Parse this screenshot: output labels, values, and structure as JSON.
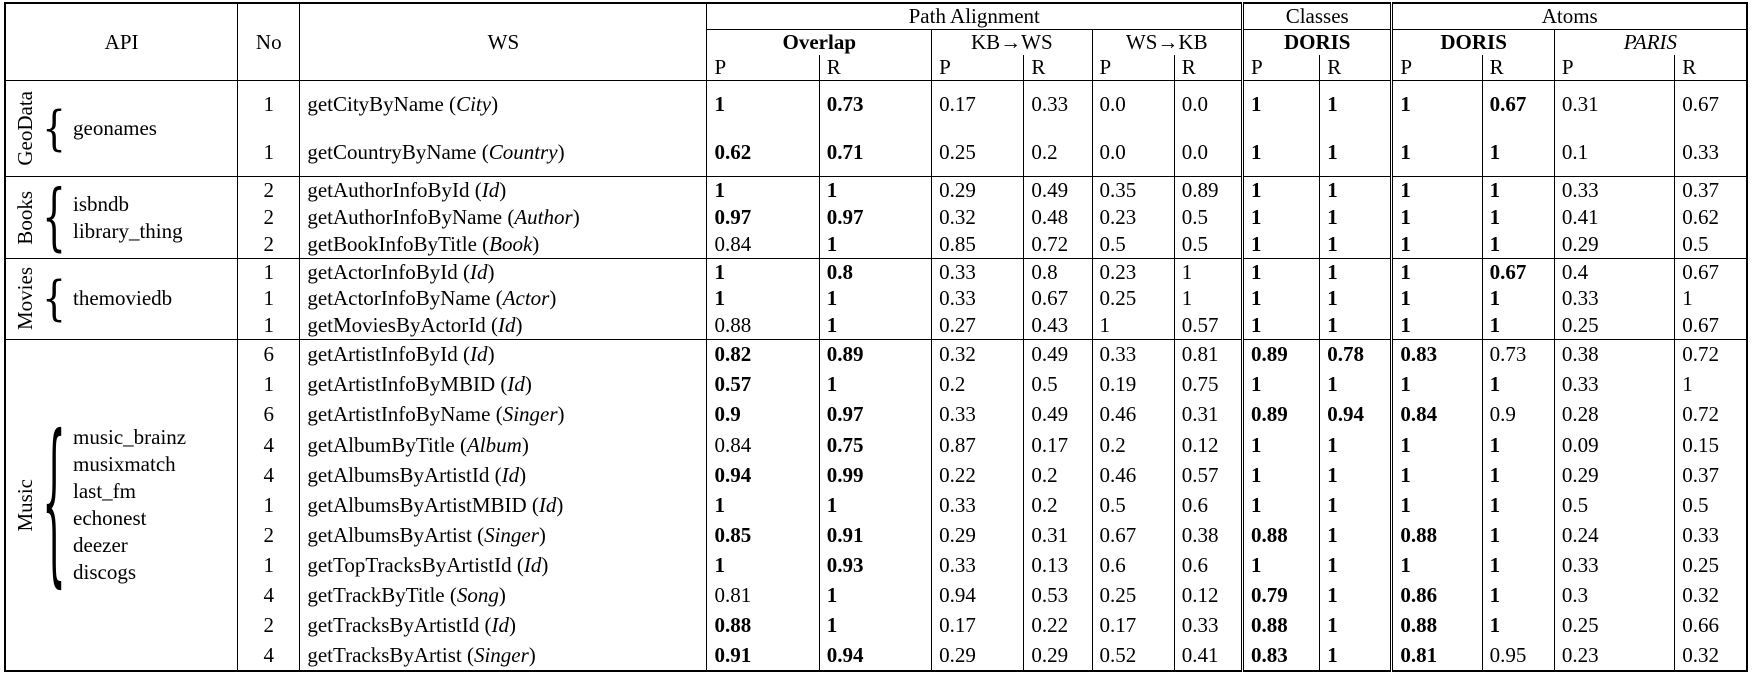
{
  "header": {
    "api": "API",
    "no": "No",
    "ws": "WS",
    "groups": [
      {
        "label": "Path Alignment"
      },
      {
        "label": "Classes"
      },
      {
        "label": "Atoms"
      }
    ],
    "subs": [
      {
        "label": "Overlap"
      },
      {
        "label": "KB→WS"
      },
      {
        "label": "WS→KB"
      },
      {
        "label": "DORIS"
      },
      {
        "label": "DORIS"
      },
      {
        "label": "PARIS"
      }
    ],
    "p": "P",
    "r": "R"
  },
  "groups": [
    {
      "name": "GeoData",
      "apis": [
        "geonames"
      ],
      "rows": [
        {
          "no": "1",
          "ws": "getCityByName",
          "arg": "City",
          "vals": [
            "*1",
            "*0.73",
            "0.17",
            "0.33",
            "0.0",
            "0.0",
            "*1",
            "*1",
            "*1",
            "*0.67",
            "0.31",
            "0.67"
          ]
        },
        {
          "no": "1",
          "ws": "getCountryByName",
          "arg": "Country",
          "vals": [
            "*0.62",
            "*0.71",
            "0.25",
            "0.2",
            "0.0",
            "0.0",
            "*1",
            "*1",
            "*1",
            "*1",
            "0.1",
            "0.33"
          ]
        }
      ]
    },
    {
      "name": "Books",
      "apis": [
        "isbndb",
        "library_thing"
      ],
      "rows": [
        {
          "no": "2",
          "ws": "getAuthorInfoById",
          "arg": "Id",
          "vals": [
            "*1",
            "*1",
            "0.29",
            "0.49",
            "0.35",
            "0.89",
            "*1",
            "*1",
            "*1",
            "*1",
            "0.33",
            "0.37"
          ]
        },
        {
          "no": "2",
          "ws": "getAuthorInfoByName",
          "arg": "Author",
          "vals": [
            "*0.97",
            "*0.97",
            "0.32",
            "0.48",
            "0.23",
            "0.5",
            "*1",
            "*1",
            "*1",
            "*1",
            "0.41",
            "0.62"
          ]
        },
        {
          "no": "2",
          "ws": "getBookInfoByTitle",
          "arg": "Book",
          "vals": [
            "0.84",
            "*1",
            "0.85",
            "0.72",
            "0.5",
            "0.5",
            "*1",
            "*1",
            "*1",
            "*1",
            "0.29",
            "0.5"
          ]
        }
      ]
    },
    {
      "name": "Movies",
      "apis": [
        "themoviedb"
      ],
      "rows": [
        {
          "no": "1",
          "ws": "getActorInfoById",
          "arg": "Id",
          "vals": [
            "*1",
            "*0.8",
            "0.33",
            "0.8",
            "0.23",
            "1",
            "*1",
            "*1",
            "*1",
            "*0.67",
            "0.4",
            "0.67"
          ]
        },
        {
          "no": "1",
          "ws": "getActorInfoByName",
          "arg": "Actor",
          "vals": [
            "*1",
            "*1",
            "0.33",
            "0.67",
            "0.25",
            "1",
            "*1",
            "*1",
            "*1",
            "*1",
            "0.33",
            "1"
          ]
        },
        {
          "no": "1",
          "ws": "getMoviesByActorId",
          "arg": "Id",
          "vals": [
            "0.88",
            "*1",
            "0.27",
            "0.43",
            "1",
            "0.57",
            "*1",
            "*1",
            "*1",
            "*1",
            "0.25",
            "0.67"
          ]
        }
      ]
    },
    {
      "name": "Music",
      "apis": [
        "music_brainz",
        "musixmatch",
        "last_fm",
        "echonest",
        "deezer",
        "discogs"
      ],
      "rows": [
        {
          "no": "6",
          "ws": "getArtistInfoById",
          "arg": "Id",
          "vals": [
            "*0.82",
            "*0.89",
            "0.32",
            "0.49",
            "0.33",
            "0.81",
            "*0.89",
            "*0.78",
            "*0.83",
            "0.73",
            "0.38",
            "0.72"
          ]
        },
        {
          "no": "1",
          "ws": "getArtistInfoByMBID",
          "arg": "Id",
          "vals": [
            "*0.57",
            "*1",
            "0.2",
            "0.5",
            "0.19",
            "0.75",
            "*1",
            "*1",
            "*1",
            "*1",
            "0.33",
            "1"
          ]
        },
        {
          "no": "6",
          "ws": "getArtistInfoByName",
          "arg": "Singer",
          "vals": [
            "*0.9",
            "*0.97",
            "0.33",
            "0.49",
            "0.46",
            "0.31",
            "*0.89",
            "*0.94",
            "*0.84",
            "0.9",
            "0.28",
            "0.72"
          ]
        },
        {
          "no": "4",
          "ws": "getAlbumByTitle",
          "arg": "Album",
          "vals": [
            "0.84",
            "*0.75",
            "0.87",
            "0.17",
            "0.2",
            "0.12",
            "*1",
            "*1",
            "*1",
            "*1",
            "0.09",
            "0.15"
          ]
        },
        {
          "no": "4",
          "ws": "getAlbumsByArtistId",
          "arg": "Id",
          "vals": [
            "*0.94",
            "*0.99",
            "0.22",
            "0.2",
            "0.46",
            "0.57",
            "*1",
            "*1",
            "*1",
            "*1",
            "0.29",
            "0.37"
          ]
        },
        {
          "no": "1",
          "ws": "getAlbumsByArtistMBID",
          "arg": "Id",
          "vals": [
            "*1",
            "*1",
            "0.33",
            "0.2",
            "0.5",
            "0.6",
            "*1",
            "*1",
            "*1",
            "*1",
            "0.5",
            "0.5"
          ]
        },
        {
          "no": "2",
          "ws": "getAlbumsByArtist",
          "arg": "Singer",
          "vals": [
            "*0.85",
            "*0.91",
            "0.29",
            "0.31",
            "0.67",
            "0.38",
            "*0.88",
            "*1",
            "*0.88",
            "*1",
            "0.24",
            "0.33"
          ]
        },
        {
          "no": "1",
          "ws": "getTopTracksByArtistId",
          "arg": "Id",
          "vals": [
            "*1",
            "*0.93",
            "0.33",
            "0.13",
            "0.6",
            "0.6",
            "*1",
            "*1",
            "*1",
            "*1",
            "0.33",
            "0.25"
          ]
        },
        {
          "no": "4",
          "ws": "getTrackByTitle",
          "arg": "Song",
          "vals": [
            "0.81",
            "*1",
            "0.94",
            "0.53",
            "0.25",
            "0.12",
            "*0.79",
            "*1",
            "*0.86",
            "*1",
            "0.3",
            "0.32"
          ]
        },
        {
          "no": "2",
          "ws": "getTracksByArtistId",
          "arg": "Id",
          "vals": [
            "*0.88",
            "*1",
            "0.17",
            "0.22",
            "0.17",
            "0.33",
            "*0.88",
            "*1",
            "*0.88",
            "*1",
            "0.25",
            "0.66"
          ]
        },
        {
          "no": "4",
          "ws": "getTracksByArtist",
          "arg": "Singer",
          "vals": [
            "*0.91",
            "*0.94",
            "0.29",
            "0.29",
            "0.52",
            "0.41",
            "*0.83",
            "*1",
            "*0.81",
            "0.95",
            "0.23",
            "0.32"
          ]
        }
      ]
    }
  ]
}
